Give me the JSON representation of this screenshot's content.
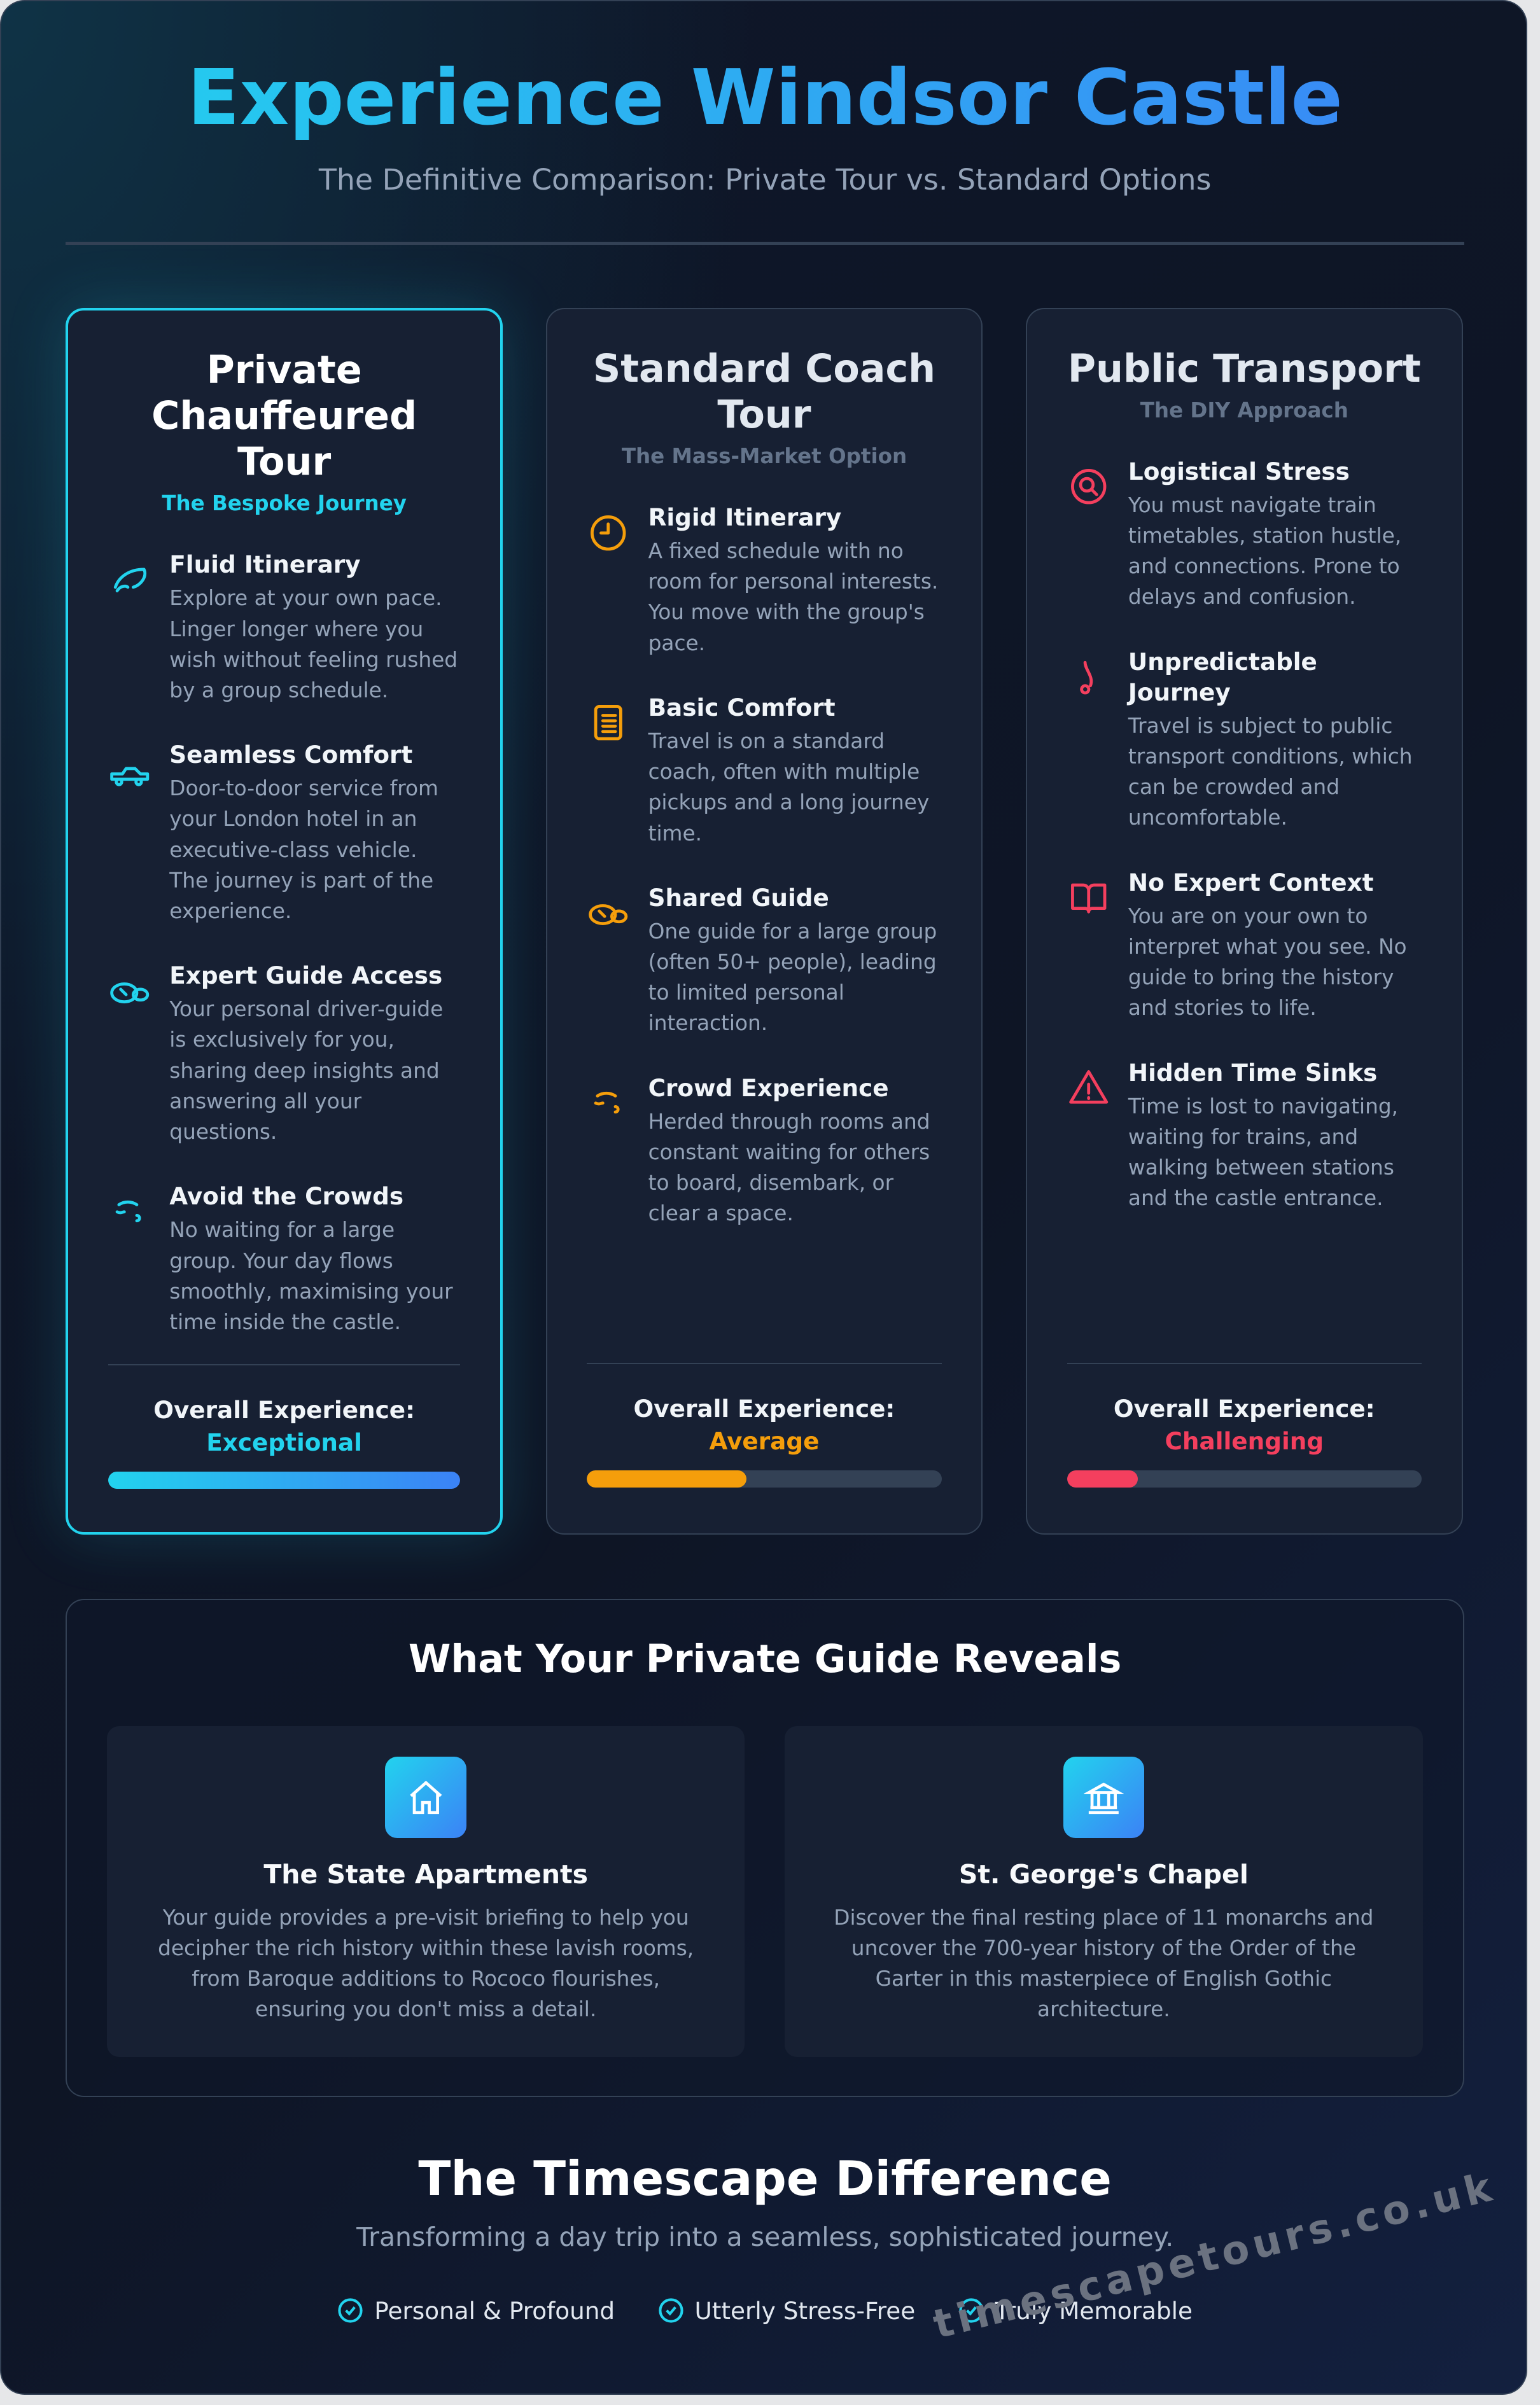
{
  "header": {
    "title": "Experience Windsor Castle",
    "subtitle": "The Definitive Comparison: Private Tour vs. Standard Options"
  },
  "colors": {
    "cyan": "#22d3ee",
    "blue": "#3b82f6",
    "amber": "#f59e0b",
    "red": "#f43f5e"
  },
  "cards": [
    {
      "title": "Private Chauffeured Tour",
      "tagline": "The Bespoke Journey",
      "accent": "#22d3ee",
      "features": [
        {
          "icon": "itinerary-icon",
          "title": "Fluid Itinerary",
          "desc": "Explore at your own pace. Linger longer where you wish without feeling rushed by a group schedule."
        },
        {
          "icon": "car-icon",
          "title": "Seamless Comfort",
          "desc": "Door-to-door service from your London hotel in an executive-class vehicle. The journey is part of the experience."
        },
        {
          "icon": "guide-icon",
          "title": "Expert Guide Access",
          "desc": "Your personal driver-guide is exclusively for you, sharing deep insights and answering all your questions."
        },
        {
          "icon": "crowd-icon",
          "title": "Avoid the Crowds",
          "desc": "No waiting for a large group. Your day flows smoothly, maximising your time inside the castle."
        }
      ],
      "overall_label": "Overall Experience:",
      "rating": "Exceptional",
      "rating_percent": 100
    },
    {
      "title": "Standard Coach Tour",
      "tagline": "The Mass-Market Option",
      "accent": "#f59e0b",
      "features": [
        {
          "icon": "clock-icon",
          "title": "Rigid Itinerary",
          "desc": "A fixed schedule with no room for personal interests. You move with the group's pace."
        },
        {
          "icon": "document-icon",
          "title": "Basic Comfort",
          "desc": "Travel is on a standard coach, often with multiple pickups and a long journey time."
        },
        {
          "icon": "guide-icon",
          "title": "Shared Guide",
          "desc": "One guide for a large group (often 50+ people), leading to limited personal interaction."
        },
        {
          "icon": "crowd-icon",
          "title": "Crowd Experience",
          "desc": "Herded through rooms and constant waiting for others to board, disembark, or clear a space."
        }
      ],
      "overall_label": "Overall Experience:",
      "rating": "Average",
      "rating_percent": 45
    },
    {
      "title": "Public Transport",
      "tagline": "The DIY Approach",
      "accent": "#f43f5e",
      "features": [
        {
          "icon": "target-icon",
          "title": "Logistical Stress",
          "desc": "You must navigate train timetables, station hustle, and connections. Prone to delays and confusion."
        },
        {
          "icon": "route-icon",
          "title": "Unpredictable Journey",
          "desc": "Travel is subject to public transport conditions, which can be crowded and uncomfortable."
        },
        {
          "icon": "book-icon",
          "title": "No Expert Context",
          "desc": "You are on your own to interpret what you see. No guide to bring the history and stories to life."
        },
        {
          "icon": "warning-icon",
          "title": "Hidden Time Sinks",
          "desc": "Time is lost to navigating, waiting for trains, and walking between stations and the castle entrance."
        }
      ],
      "overall_label": "Overall Experience:",
      "rating": "Challenging",
      "rating_percent": 20
    }
  ],
  "reveals": {
    "title": "What Your Private Guide Reveals",
    "items": [
      {
        "icon": "home-icon",
        "title": "The State Apartments",
        "desc": "Your guide provides a pre-visit briefing to help you decipher the rich history within these lavish rooms, from Baroque additions to Rococo flourishes, ensuring you don't miss a detail."
      },
      {
        "icon": "landmark-icon",
        "title": "St. George's Chapel",
        "desc": "Discover the final resting place of 11 monarchs and uncover the 700-year history of the Order of the Garter in this masterpiece of English Gothic architecture."
      }
    ]
  },
  "difference": {
    "title": "The Timescape Difference",
    "subtitle": "Transforming a day trip into a seamless, sophisticated journey.",
    "points": [
      "Personal & Profound",
      "Utterly Stress-Free",
      "Truly Memorable"
    ]
  },
  "watermark": "timescapetours.co.uk"
}
